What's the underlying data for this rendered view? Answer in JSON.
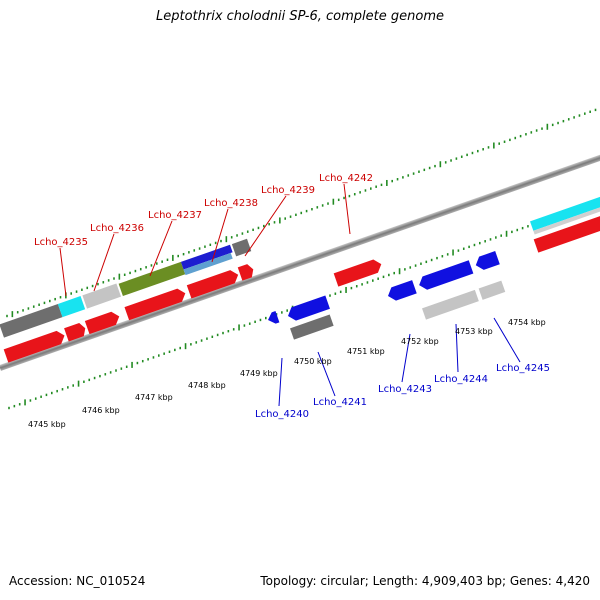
{
  "title": "Leptothrix cholodnii SP-6, complete genome",
  "footer": {
    "accession": "Accession: NC_010524",
    "topology": "Topology: circular; Length: 4,909,403 bp; Genes: 4,420"
  },
  "colors": {
    "forward_label": "#cc0000",
    "reverse_label": "#0000cc",
    "tick": "#228b22",
    "backbone": "#8a8a8a"
  },
  "scale_labels": [
    "4745 kbp",
    "4746 kbp",
    "4747 kbp",
    "4748 kbp",
    "4749 kbp",
    "4750 kbp",
    "4751 kbp",
    "4752 kbp",
    "4753 kbp",
    "4754 kbp"
  ],
  "forward_genes": [
    "Lcho_4235",
    "Lcho_4236",
    "Lcho_4237",
    "Lcho_4238",
    "Lcho_4239",
    "Lcho_4242"
  ],
  "reverse_genes": [
    "Lcho_4240",
    "Lcho_4241",
    "Lcho_4243",
    "Lcho_4244",
    "Lcho_4245"
  ]
}
